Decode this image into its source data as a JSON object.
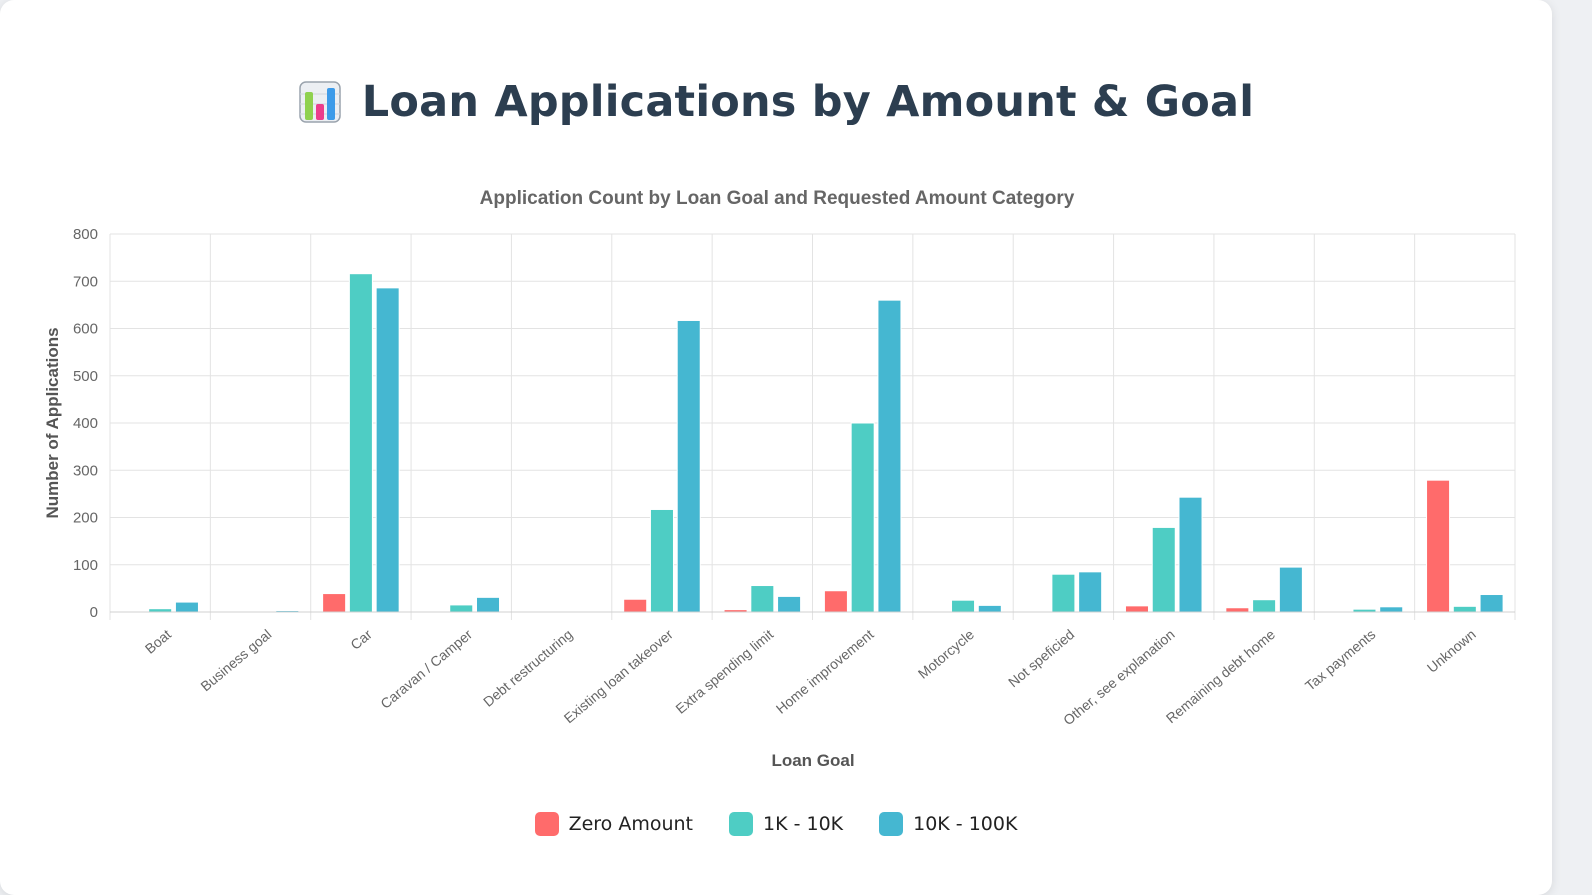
{
  "page": {
    "title": "Loan Applications by Amount & Goal",
    "icon": "bar-chart-icon"
  },
  "chart_data": {
    "type": "bar",
    "title": "Application Count by Loan Goal and Requested Amount Category",
    "xlabel": "Loan Goal",
    "ylabel": "Number of Applications",
    "ylim": [
      0,
      800
    ],
    "yticks": [
      0,
      100,
      200,
      300,
      400,
      500,
      600,
      700,
      800
    ],
    "grid": true,
    "legend_position": "bottom",
    "categories": [
      "Boat",
      "Business goal",
      "Car",
      "Caravan / Camper",
      "Debt restructuring",
      "Existing loan takeover",
      "Extra spending limit",
      "Home improvement",
      "Motorcycle",
      "Not speficied",
      "Other, see explanation",
      "Remaining debt home",
      "Tax payments",
      "Unknown"
    ],
    "series": [
      {
        "name": "Zero Amount",
        "color": "#ff6b6b",
        "values": [
          0,
          0,
          39,
          1,
          0,
          27,
          5,
          45,
          0,
          0,
          13,
          9,
          1,
          279
        ]
      },
      {
        "name": "1K - 10K",
        "color": "#4ecdc4",
        "values": [
          7,
          1,
          716,
          15,
          0,
          217,
          56,
          400,
          25,
          80,
          179,
          26,
          6,
          12
        ]
      },
      {
        "name": "10K - 100K",
        "color": "#45b7d1",
        "values": [
          21,
          3,
          686,
          31,
          0,
          617,
          33,
          660,
          14,
          85,
          243,
          95,
          11,
          37
        ]
      }
    ]
  }
}
